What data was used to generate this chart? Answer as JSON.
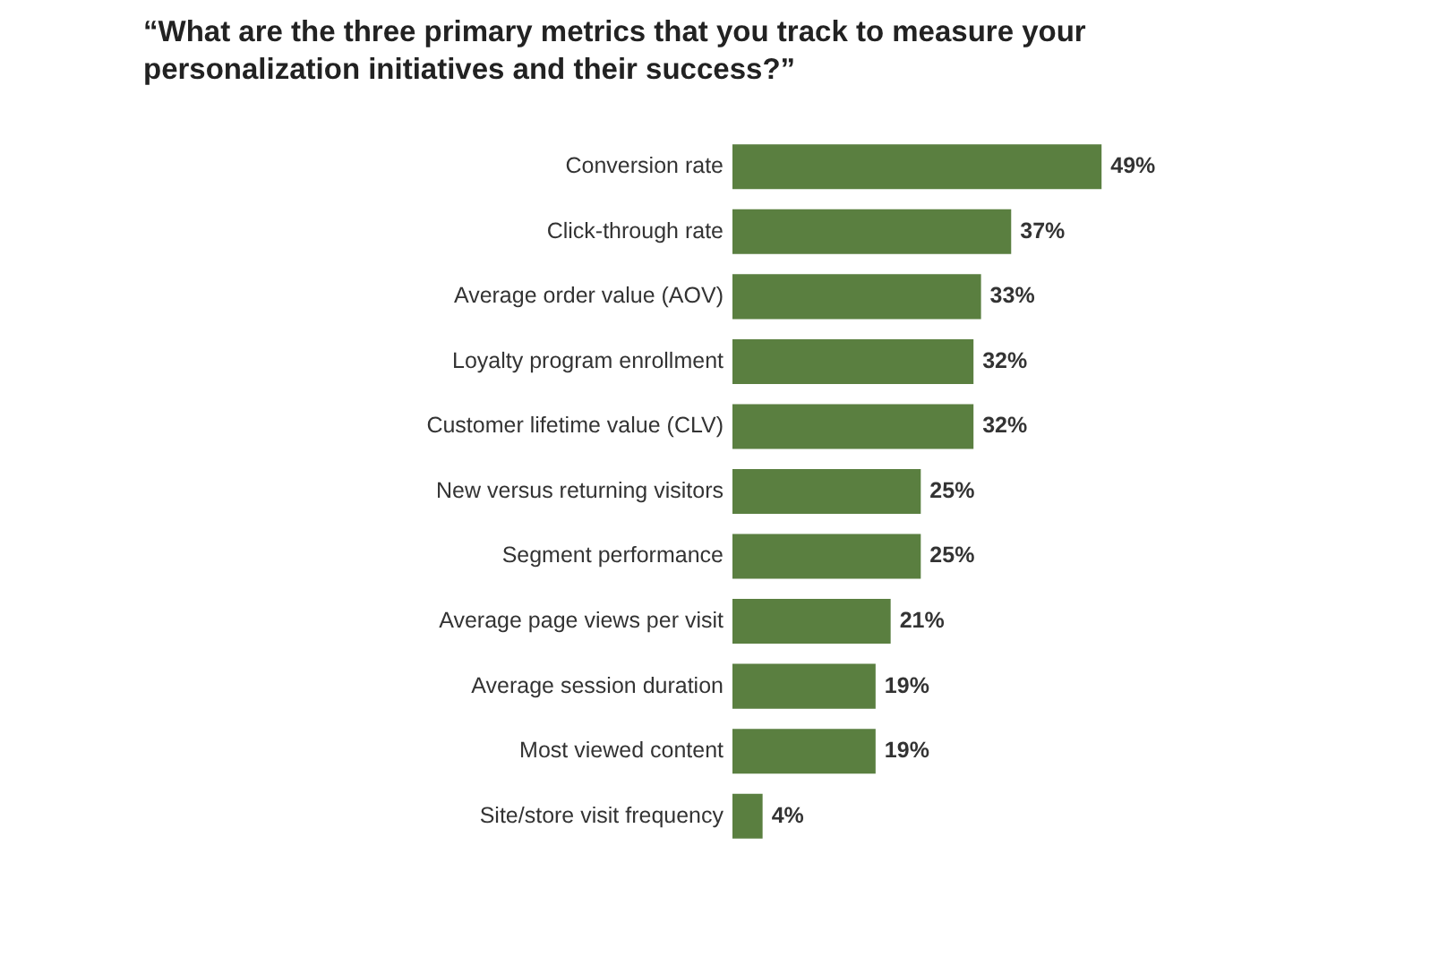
{
  "chart_data": {
    "type": "bar",
    "orientation": "horizontal",
    "title": "“What are the three primary metrics that you track to measure your personalization initiatives and their success?”",
    "categories": [
      "Conversion rate",
      "Click-through rate",
      "Average order value (AOV)",
      "Loyalty program enrollment",
      "Customer lifetime value (CLV)",
      "New versus returning visitors",
      "Segment performance",
      "Average page views per visit",
      "Average session duration",
      "Most viewed content",
      "Site/store visit frequency"
    ],
    "values": [
      49,
      37,
      33,
      32,
      32,
      25,
      25,
      21,
      19,
      19,
      4
    ],
    "value_labels": [
      "49%",
      "37%",
      "33%",
      "32%",
      "32%",
      "25%",
      "25%",
      "21%",
      "19%",
      "19%",
      "4%"
    ],
    "color": "#5a7f40",
    "legend": false
  }
}
